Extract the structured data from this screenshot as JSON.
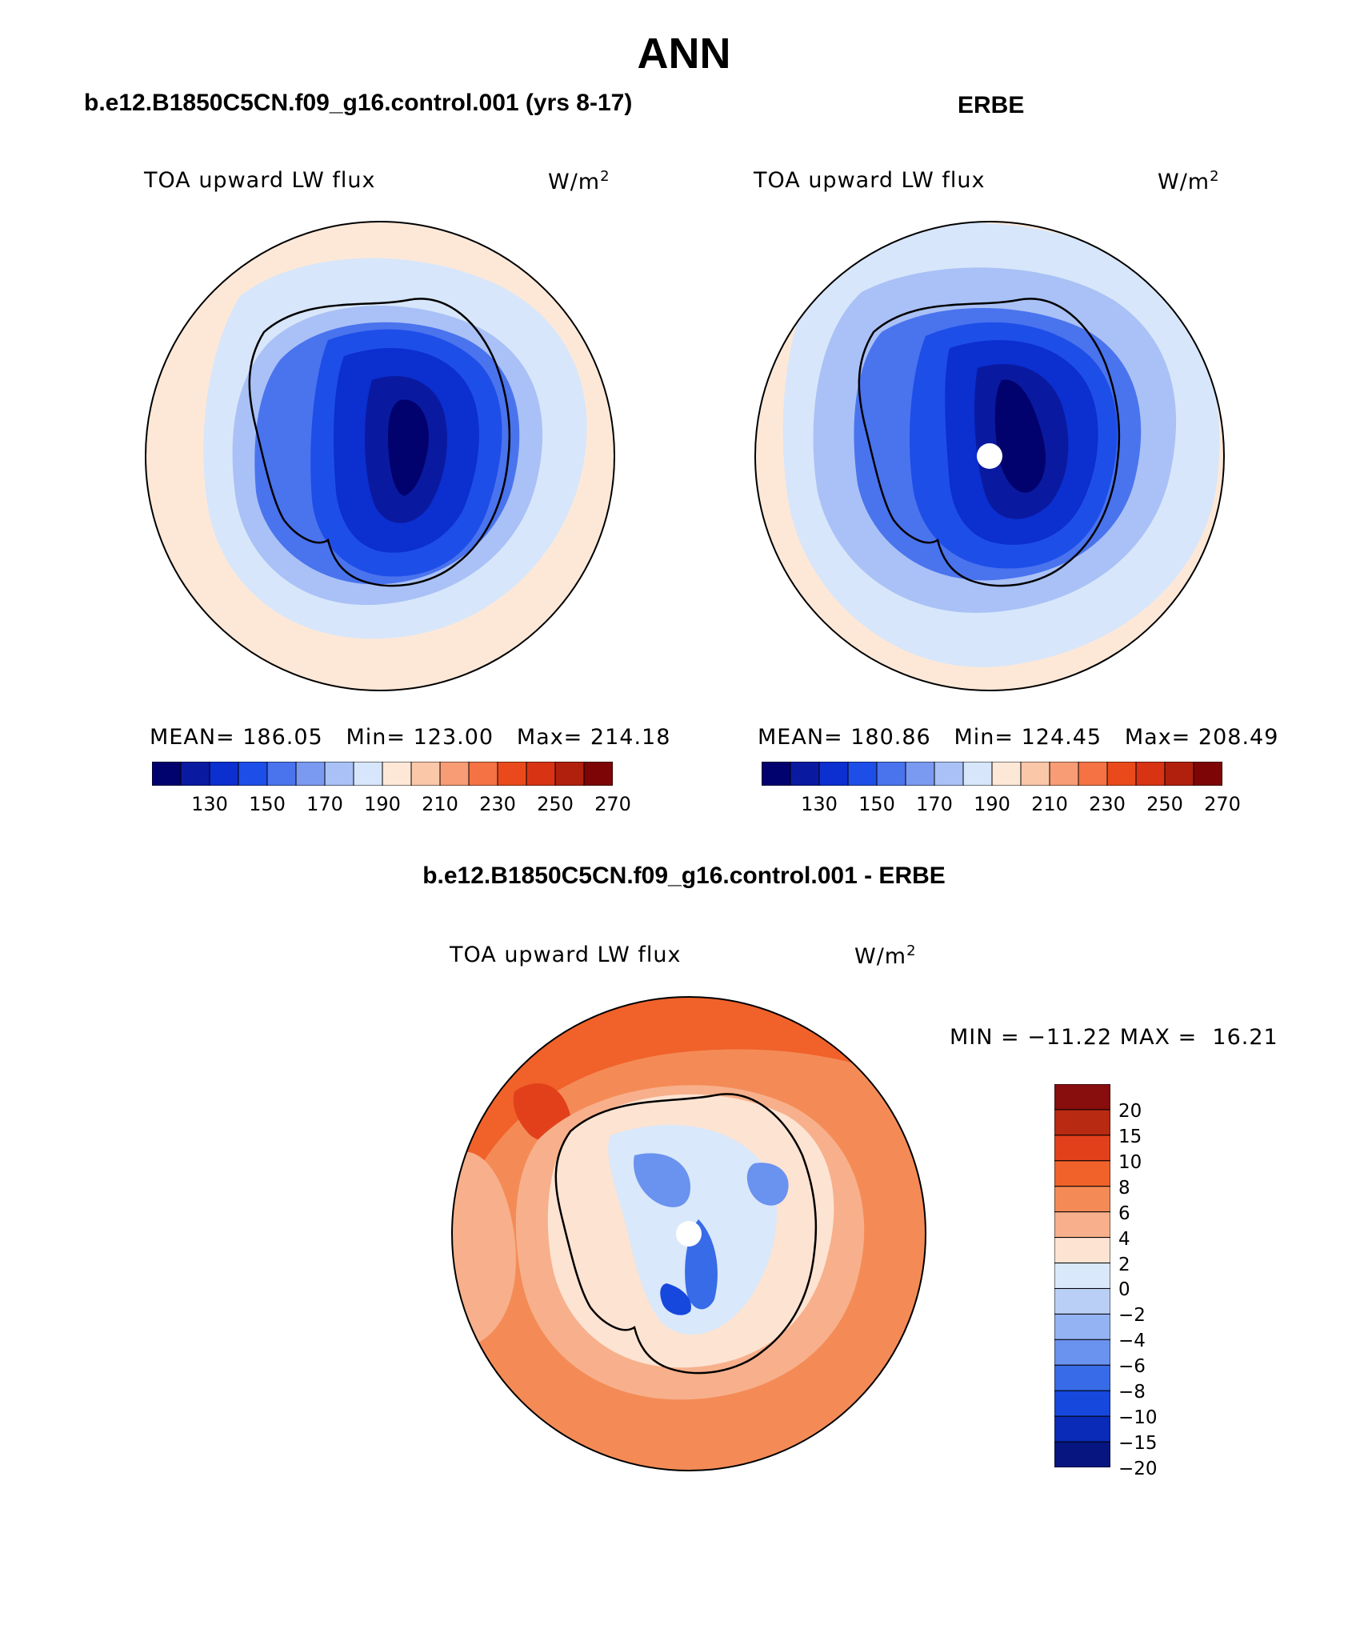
{
  "figure": {
    "title": "ANN"
  },
  "panels": [
    {
      "title": "b.e12.B1850C5CN.f09_g16.control.001 (yrs 8-17)",
      "variable": "TOA upward LW flux",
      "units": "W/m",
      "units_exp": "2",
      "stats": {
        "mean_label": "MEAN=",
        "mean": "186.05",
        "min_label": "Min=",
        "min": "123.00",
        "max_label": "Max=",
        "max": "214.18"
      }
    },
    {
      "title": "ERBE",
      "variable": "TOA upward LW flux",
      "units": "W/m",
      "units_exp": "2",
      "stats": {
        "mean_label": "MEAN=",
        "mean": "180.86",
        "min_label": "Min=",
        "min": "124.45",
        "max_label": "Max=",
        "max": "208.49"
      }
    },
    {
      "title": "b.e12.B1850C5CN.f09_g16.control.001 - ERBE",
      "variable": "TOA upward LW flux",
      "units": "W/m",
      "units_exp": "2",
      "stats": {
        "min_label": "MIN =",
        "min": "−11.22",
        "max_label": "MAX =",
        "max": "16.21"
      }
    }
  ],
  "colorbar_abs": {
    "orientation": "horizontal",
    "colors": [
      "#02026e",
      "#0a1aa0",
      "#0c2fd0",
      "#1e4ee8",
      "#4a73ee",
      "#7a9af2",
      "#a9c1f6",
      "#d7e6fa",
      "#fde8d8",
      "#fbc7a9",
      "#f89c75",
      "#f47244",
      "#ea4a1b",
      "#d83414",
      "#b0200c",
      "#7d0505"
    ],
    "ticks": [
      "130",
      "150",
      "170",
      "190",
      "210",
      "230",
      "250",
      "270"
    ]
  },
  "colorbar_diff": {
    "orientation": "vertical",
    "colors_top_to_bottom": [
      "#880d0d",
      "#b82a12",
      "#e2401b",
      "#f0622a",
      "#f48b57",
      "#f7b08b",
      "#fde3d2",
      "#d9e8fa",
      "#b9cff6",
      "#93b3f3",
      "#6a92ef",
      "#386be8",
      "#1648de",
      "#0a2bb8",
      "#06157f"
    ],
    "labels": [
      "20",
      "15",
      "10",
      "8",
      "6",
      "4",
      "2",
      "0",
      "−2",
      "−4",
      "−6",
      "−8",
      "−10",
      "−15",
      "−20"
    ]
  },
  "chart_data": {
    "type": "map",
    "projection": "south-polar stereographic",
    "region": "Antarctica / Southern Ocean",
    "maps": [
      {
        "name": "model",
        "mean": 186.05,
        "min": 123.0,
        "max": 214.18,
        "colorbar_range": [
          120,
          280
        ],
        "colorbar_step": 10
      },
      {
        "name": "ERBE",
        "mean": 180.86,
        "min": 124.45,
        "max": 208.49,
        "colorbar_range": [
          120,
          280
        ],
        "colorbar_step": 10
      },
      {
        "name": "difference",
        "min": -11.22,
        "max": 16.21,
        "colorbar_levels": [
          -20,
          -15,
          -10,
          -8,
          -6,
          -4,
          -2,
          0,
          2,
          4,
          6,
          8,
          10,
          15,
          20
        ]
      }
    ]
  }
}
